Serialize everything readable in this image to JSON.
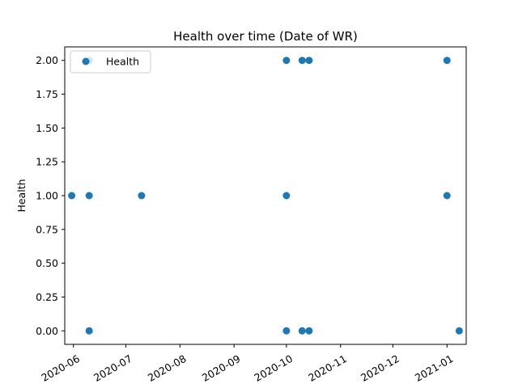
{
  "chart_data": {
    "type": "scatter",
    "title": "Health  over time (Date of WR)",
    "xlabel": "",
    "ylabel": "Health",
    "legend_position": "top-left",
    "grid": false,
    "color": "#1f77b4",
    "xlim": [
      "2020-05-27",
      "2021-01-12"
    ],
    "ylim": [
      -0.1,
      2.1
    ],
    "x_ticks": [
      "2020-06-01",
      "2020-07-01",
      "2020-08-01",
      "2020-09-01",
      "2020-10-01",
      "2020-11-01",
      "2020-12-01",
      "2021-01-01"
    ],
    "x_tick_labels": [
      "2020-06",
      "2020-07",
      "2020-08",
      "2020-09",
      "2020-10",
      "2020-11",
      "2020-12",
      "2021-01"
    ],
    "y_ticks": [
      0.0,
      0.25,
      0.5,
      0.75,
      1.0,
      1.25,
      1.5,
      1.75,
      2.0
    ],
    "y_tick_labels": [
      "0.00",
      "0.25",
      "0.50",
      "0.75",
      "1.00",
      "1.25",
      "1.50",
      "1.75",
      "2.00"
    ],
    "series": [
      {
        "name": "Health",
        "points": [
          {
            "x": "2020-05-31",
            "y": 1
          },
          {
            "x": "2020-06-10",
            "y": 2
          },
          {
            "x": "2020-06-10",
            "y": 1
          },
          {
            "x": "2020-06-10",
            "y": 0
          },
          {
            "x": "2020-07-10",
            "y": 1
          },
          {
            "x": "2020-10-01",
            "y": 2
          },
          {
            "x": "2020-10-01",
            "y": 1
          },
          {
            "x": "2020-10-01",
            "y": 0
          },
          {
            "x": "2020-10-10",
            "y": 2
          },
          {
            "x": "2020-10-10",
            "y": 0
          },
          {
            "x": "2020-10-14",
            "y": 2
          },
          {
            "x": "2020-10-14",
            "y": 0
          },
          {
            "x": "2021-01-01",
            "y": 2
          },
          {
            "x": "2021-01-01",
            "y": 1
          },
          {
            "x": "2021-01-08",
            "y": 0
          }
        ]
      }
    ]
  }
}
